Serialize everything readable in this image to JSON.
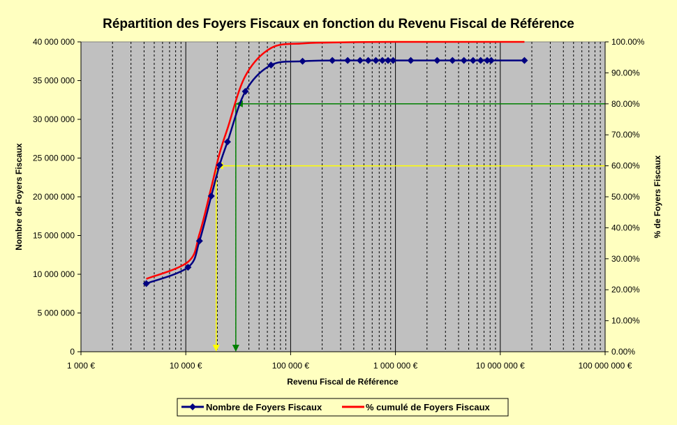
{
  "chart_data": {
    "type": "line",
    "title": "Répartition des Foyers Fiscaux en fonction du Revenu Fiscal de Référence",
    "xlabel": "Revenu Fiscal de Référence",
    "ylabel": "Nombre de Foyers Fiscaux",
    "y2label": "% de Foyers Fiscaux",
    "xscale": "log",
    "xlim": [
      1000,
      100000000
    ],
    "ylim": [
      0,
      40000000
    ],
    "y2lim": [
      0,
      1
    ],
    "grid": true,
    "legend_position": "bottom",
    "x_ticks": [
      {
        "value": 1000,
        "label": "1 000 €"
      },
      {
        "value": 10000,
        "label": "10 000 €"
      },
      {
        "value": 100000,
        "label": "100 000 €"
      },
      {
        "value": 1000000,
        "label": "1 000 000 €"
      },
      {
        "value": 10000000,
        "label": "10 000 000 €"
      },
      {
        "value": 100000000,
        "label": "100 000 000 €"
      }
    ],
    "y_ticks": [
      {
        "value": 0,
        "label": "0"
      },
      {
        "value": 5000000,
        "label": "5 000 000"
      },
      {
        "value": 10000000,
        "label": "10 000 000"
      },
      {
        "value": 15000000,
        "label": "15 000 000"
      },
      {
        "value": 20000000,
        "label": "20 000 000"
      },
      {
        "value": 25000000,
        "label": "25 000 000"
      },
      {
        "value": 30000000,
        "label": "30 000 000"
      },
      {
        "value": 35000000,
        "label": "35 000 000"
      },
      {
        "value": 40000000,
        "label": "40 000 000"
      }
    ],
    "y2_ticks": [
      {
        "value": 0,
        "label": "0.00%"
      },
      {
        "value": 0.1,
        "label": "10.00%"
      },
      {
        "value": 0.2,
        "label": "20.00%"
      },
      {
        "value": 0.3,
        "label": "30.00%"
      },
      {
        "value": 0.4,
        "label": "40.00%"
      },
      {
        "value": 0.5,
        "label": "50.00%"
      },
      {
        "value": 0.6,
        "label": "60.00%"
      },
      {
        "value": 0.7,
        "label": "70.00%"
      },
      {
        "value": 0.8,
        "label": "80.00%"
      },
      {
        "value": 0.9,
        "label": "90.00%"
      },
      {
        "value": 1.0,
        "label": "100.00%"
      }
    ],
    "series": [
      {
        "name": "Nombre de Foyers Fiscaux",
        "axis": "left",
        "color": "#000080",
        "marker": "diamond",
        "points": [
          [
            4200,
            8800000
          ],
          [
            10500,
            10900000
          ],
          [
            13500,
            14300000
          ],
          [
            17500,
            20100000
          ],
          [
            21000,
            24100000
          ],
          [
            25000,
            27100000
          ],
          [
            37000,
            33600000
          ],
          [
            65000,
            37000000
          ],
          [
            130000,
            37500000
          ],
          [
            250000,
            37600000
          ],
          [
            350000,
            37600000
          ],
          [
            460000,
            37600000
          ],
          [
            550000,
            37600000
          ],
          [
            650000,
            37600000
          ],
          [
            750000,
            37600000
          ],
          [
            850000,
            37600000
          ],
          [
            950000,
            37600000
          ],
          [
            1400000,
            37600000
          ],
          [
            2500000,
            37600000
          ],
          [
            3500000,
            37600000
          ],
          [
            4500000,
            37600000
          ],
          [
            5500000,
            37600000
          ],
          [
            6500000,
            37600000
          ],
          [
            7500000,
            37600000
          ],
          [
            8200000,
            37600000
          ],
          [
            17000000,
            37600000
          ]
        ]
      },
      {
        "name": "% cumulé de Foyers Fiscaux",
        "axis": "right",
        "color": "#ff0000",
        "marker": "none",
        "points": [
          [
            4200,
            0.235
          ],
          [
            10500,
            0.29
          ],
          [
            13500,
            0.38
          ],
          [
            17500,
            0.53
          ],
          [
            21000,
            0.64
          ],
          [
            25000,
            0.72
          ],
          [
            37000,
            0.89
          ],
          [
            65000,
            0.98
          ],
          [
            130000,
            0.995
          ],
          [
            250000,
            0.998
          ],
          [
            1000000,
            1.0
          ],
          [
            17000000,
            1.0
          ]
        ]
      }
    ],
    "annotations": [
      {
        "color": "#ffff00",
        "y_value": 0.6,
        "x_value": 19500
      },
      {
        "color": "#008000",
        "y_value": 0.8,
        "x_value": 30000
      }
    ]
  }
}
